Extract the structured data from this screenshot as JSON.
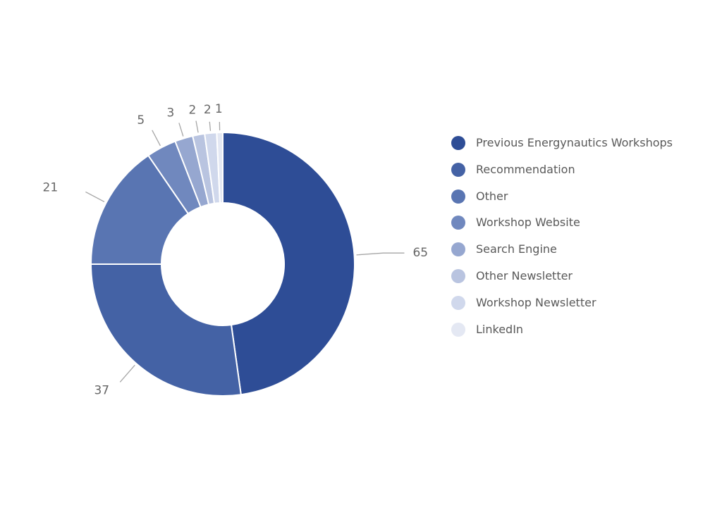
{
  "chart_data": {
    "type": "pie",
    "variant": "donut",
    "title": "",
    "legend_position": "right",
    "categories": [
      "Previous Energynautics Workshops",
      "Recommendation",
      "Other",
      "Workshop Website",
      "Search Engine",
      "Other Newsletter",
      "Workshop Newsletter",
      "LinkedIn"
    ],
    "values": [
      65,
      37,
      21,
      5,
      3,
      2,
      2,
      1
    ],
    "colors": [
      "#2e4d96",
      "#4462a5",
      "#5975b2",
      "#7088be",
      "#96a7d0",
      "#b9c4e0",
      "#d0d8ec",
      "#e4e8f3"
    ]
  }
}
